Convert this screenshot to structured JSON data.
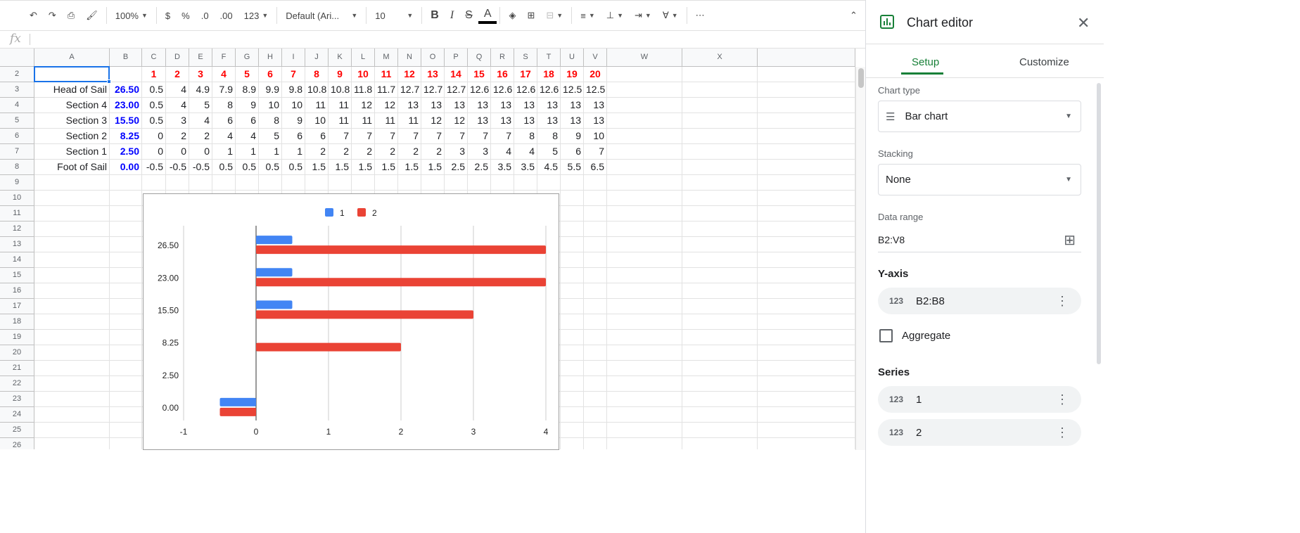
{
  "toolbar": {
    "zoom": "100%",
    "currency": "$",
    "percent": "%",
    "dec_less": ".0",
    "dec_more": ".00",
    "format": "123",
    "font": "Default (Ari...",
    "font_size": "10",
    "bold": "B",
    "italic": "I",
    "strike": "S",
    "text_color": "A",
    "more": "⋯"
  },
  "formula_bar": {
    "fx": "fx",
    "value": ""
  },
  "columns": [
    "A",
    "B",
    "C",
    "D",
    "E",
    "F",
    "G",
    "H",
    "I",
    "J",
    "K",
    "L",
    "M",
    "N",
    "O",
    "P",
    "Q",
    "R",
    "S",
    "T",
    "U",
    "V",
    "W",
    "X"
  ],
  "rows": [
    {
      "n": "2",
      "label": "",
      "y": "",
      "vals": [
        "1",
        "2",
        "3",
        "4",
        "5",
        "6",
        "7",
        "8",
        "9",
        "10",
        "11",
        "12",
        "13",
        "14",
        "15",
        "16",
        "17",
        "18",
        "19",
        "20"
      ]
    },
    {
      "n": "3",
      "label": "Head of Sail",
      "y": "26.50",
      "vals": [
        "0.5",
        "4",
        "4.9",
        "7.9",
        "8.9",
        "9.9",
        "9.8",
        "10.8",
        "10.8",
        "11.8",
        "11.7",
        "12.7",
        "12.7",
        "12.7",
        "12.6",
        "12.6",
        "12.6",
        "12.6",
        "12.5",
        "12.5"
      ]
    },
    {
      "n": "4",
      "label": "Section 4",
      "y": "23.00",
      "vals": [
        "0.5",
        "4",
        "5",
        "8",
        "9",
        "10",
        "10",
        "11",
        "11",
        "12",
        "12",
        "13",
        "13",
        "13",
        "13",
        "13",
        "13",
        "13",
        "13",
        "13"
      ]
    },
    {
      "n": "5",
      "label": "Section 3",
      "y": "15.50",
      "vals": [
        "0.5",
        "3",
        "4",
        "6",
        "6",
        "8",
        "9",
        "10",
        "11",
        "11",
        "11",
        "11",
        "12",
        "12",
        "13",
        "13",
        "13",
        "13",
        "13",
        "13"
      ]
    },
    {
      "n": "6",
      "label": "Section 2",
      "y": "8.25",
      "vals": [
        "0",
        "2",
        "2",
        "4",
        "4",
        "5",
        "6",
        "6",
        "7",
        "7",
        "7",
        "7",
        "7",
        "7",
        "7",
        "7",
        "8",
        "8",
        "9",
        "10"
      ]
    },
    {
      "n": "7",
      "label": "Section 1",
      "y": "2.50",
      "vals": [
        "0",
        "0",
        "0",
        "1",
        "1",
        "1",
        "1",
        "2",
        "2",
        "2",
        "2",
        "2",
        "2",
        "3",
        "3",
        "4",
        "4",
        "5",
        "6",
        "7"
      ]
    },
    {
      "n": "8",
      "label": "Foot of Sail",
      "y": "0.00",
      "vals": [
        "-0.5",
        "-0.5",
        "-0.5",
        "0.5",
        "0.5",
        "0.5",
        "0.5",
        "1.5",
        "1.5",
        "1.5",
        "1.5",
        "1.5",
        "1.5",
        "2.5",
        "2.5",
        "3.5",
        "3.5",
        "4.5",
        "5.5",
        "6.5"
      ]
    }
  ],
  "empty_rows": [
    "9",
    "10",
    "11",
    "12",
    "13",
    "14",
    "15",
    "16",
    "17",
    "18",
    "19",
    "20",
    "21",
    "22",
    "23",
    "24",
    "25",
    "26"
  ],
  "chart_data": {
    "type": "bar",
    "orientation": "horizontal",
    "categories": [
      "26.50",
      "23.00",
      "15.50",
      "8.25",
      "2.50",
      "0.00"
    ],
    "series": [
      {
        "name": "1",
        "color": "#4285f4",
        "values": [
          0.5,
          0.5,
          0.5,
          0,
          0,
          -0.5
        ]
      },
      {
        "name": "2",
        "color": "#ea4335",
        "values": [
          4,
          4,
          3,
          2,
          0,
          -0.5
        ]
      }
    ],
    "xlim": [
      -1,
      4
    ],
    "xticks": [
      "-1",
      "0",
      "1",
      "2",
      "3",
      "4"
    ],
    "grid": true,
    "legend": "top"
  },
  "editor": {
    "title": "Chart editor",
    "tabs": [
      "Setup",
      "Customize"
    ],
    "chart_type_label": "Chart type",
    "chart_type": "Bar chart",
    "stacking_label": "Stacking",
    "stacking": "None",
    "data_range_label": "Data range",
    "data_range": "B2:V8",
    "y_axis_label": "Y-axis",
    "y_axis": "B2:B8",
    "aggregate": "Aggregate",
    "series_label": "Series",
    "series": [
      "1",
      "2"
    ],
    "accent": "#188038"
  }
}
